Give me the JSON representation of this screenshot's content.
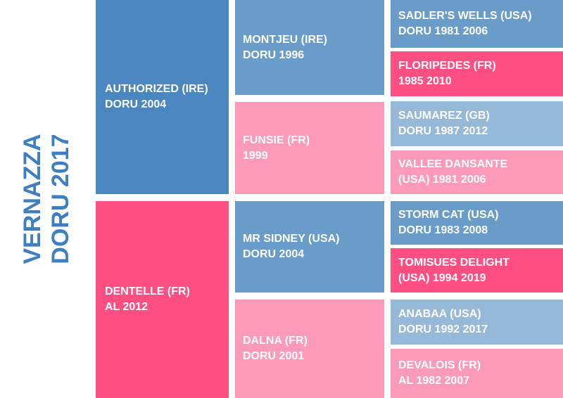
{
  "subject": {
    "name": "VERNAZZA",
    "details": "DORU 2017"
  },
  "sire": {
    "name": "AUTHORIZED (IRE)",
    "details": "DORU 2004"
  },
  "dam": {
    "name": "DENTELLE (FR)",
    "details": "AL 2012"
  },
  "sire_sire": {
    "name": "MONTJEU (IRE)",
    "details": "DORU 1996"
  },
  "sire_dam": {
    "name": "FUNSIE (FR)",
    "details": "1999"
  },
  "dam_sire": {
    "name": "MR SIDNEY (USA)",
    "details": "DORU 2004"
  },
  "dam_dam": {
    "name": "DALNA (FR)",
    "details": "DORU 2001"
  },
  "gen3": [
    {
      "line1": "SADLER'S WELLS (USA)",
      "line2": "DORU 1981 2006"
    },
    {
      "line1": "FLORIPEDES (FR)",
      "line2": "1985 2010"
    },
    {
      "line1": "SAUMAREZ (GB)",
      "line2": "DORU 1987 2012"
    },
    {
      "line1": "VALLEE DANSANTE",
      "line2": "(USA) 1981 2006"
    },
    {
      "line1": "STORM CAT (USA)",
      "line2": "DORU 1983 2008"
    },
    {
      "line1": "TOMISUES DELIGHT",
      "line2": "(USA) 1994 2019"
    },
    {
      "line1": "ANABAA (USA)",
      "line2": "DORU 1992 2017"
    },
    {
      "line1": "DEVALOIS (FR)",
      "line2": "AL 1982 2007"
    }
  ],
  "colors": {
    "subject_text": "#3d7fc1",
    "blue_dark": "#4a86c0",
    "blue_mid": "#6a9cca",
    "blue_light": "#96b8d9",
    "pink_dark": "#ff4f82",
    "pink_light": "#fd9ab8"
  }
}
